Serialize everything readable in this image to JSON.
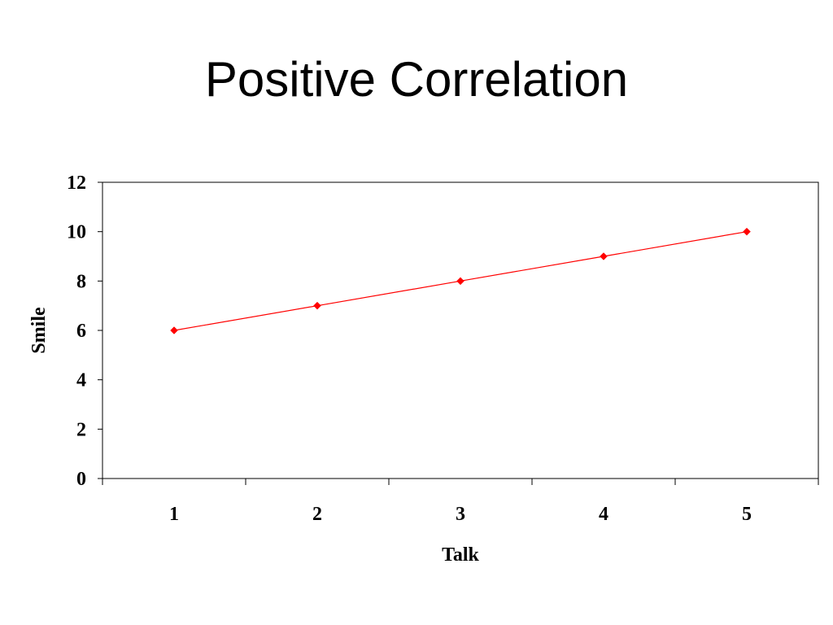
{
  "slide": {
    "title": "Positive Correlation"
  },
  "chart_data": {
    "type": "line",
    "title": "",
    "xlabel": "Talk",
    "ylabel": "Smile",
    "categories": [
      "1",
      "2",
      "3",
      "4",
      "5"
    ],
    "series": [
      {
        "values": [
          6,
          7,
          8,
          9,
          10
        ],
        "color": "#ff0000",
        "marker": "diamond"
      }
    ],
    "ylim": [
      0,
      12
    ],
    "y_ticks": [
      0,
      2,
      4,
      6,
      8,
      10,
      12
    ],
    "grid": false,
    "legend": "none"
  }
}
